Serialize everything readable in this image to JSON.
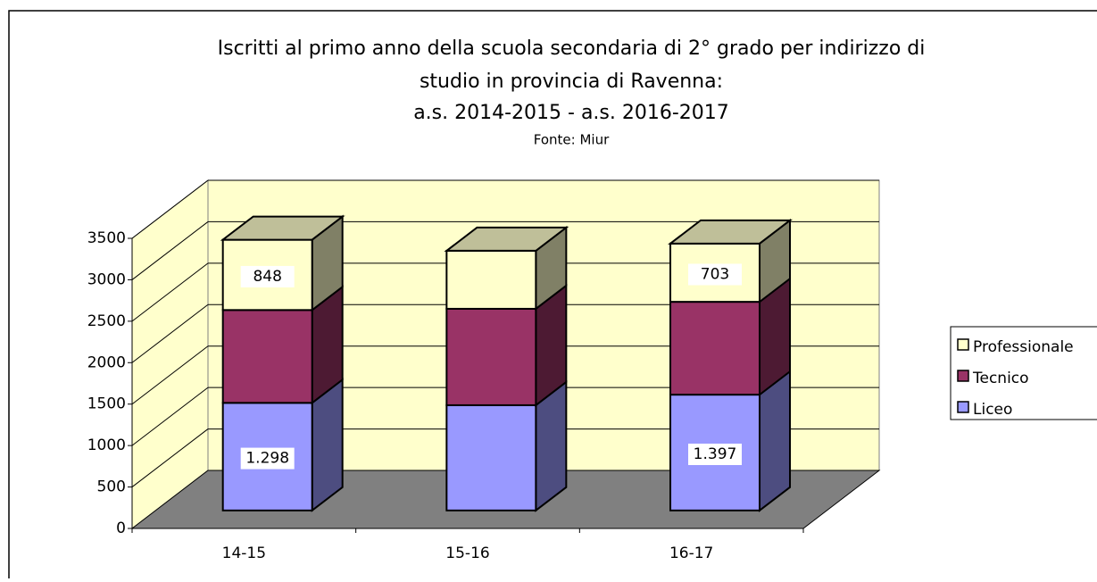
{
  "chart_data": {
    "type": "bar3d_stacked",
    "title": [
      "Iscritti al primo anno della scuola secondaria di 2° grado per indirizzo di",
      "studio in provincia di Ravenna:",
      "a.s. 2014-2015 - a.s. 2016-2017"
    ],
    "subtitle": "Fonte: Miur",
    "categories": [
      "14-15",
      "15-16",
      "16-17"
    ],
    "series": [
      {
        "name": "Liceo",
        "color": "#9999ff",
        "values": [
          1298,
          1270,
          1397
        ],
        "value_labels": [
          "1.298",
          null,
          "1.397"
        ]
      },
      {
        "name": "Tecnico",
        "color": "#993366",
        "values": [
          1120,
          1163,
          1120
        ]
      },
      {
        "name": "Professionale",
        "color": "#ffffcc",
        "values": [
          848,
          700,
          703
        ],
        "value_labels": [
          "848",
          null,
          "703"
        ]
      }
    ],
    "ylim": [
      0,
      3500
    ],
    "yticks": [
      0,
      500,
      1000,
      1500,
      2000,
      2500,
      3000,
      3500
    ],
    "grid": true,
    "legend": "right"
  }
}
